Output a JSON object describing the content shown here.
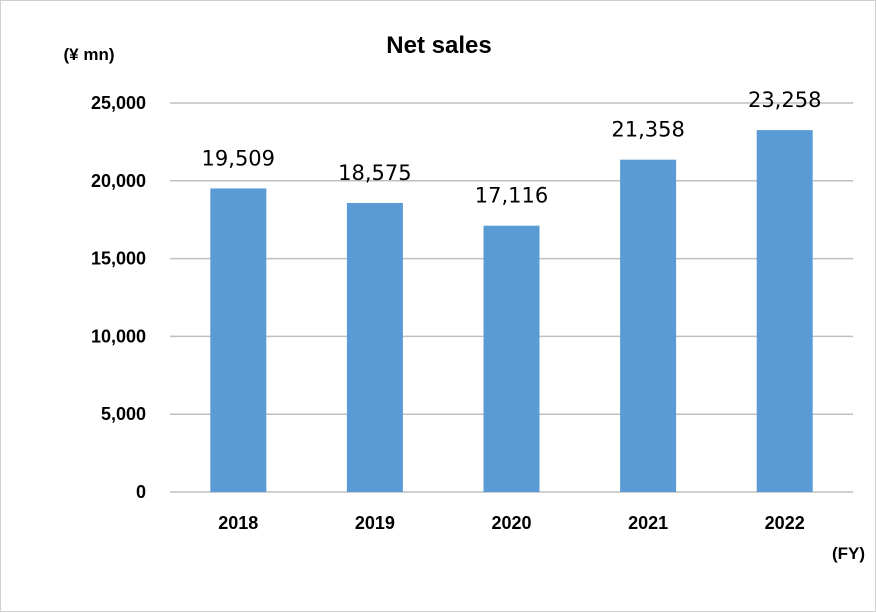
{
  "chart_data": {
    "type": "bar",
    "title": "Net sales",
    "y_unit_label": "(¥ mn)",
    "x_unit_label": "(FY)",
    "categories": [
      "2018",
      "2019",
      "2020",
      "2021",
      "2022"
    ],
    "values": [
      19509,
      18575,
      17116,
      21358,
      23258
    ],
    "value_labels": [
      "19,509",
      "18,575",
      "17,116",
      "21,358",
      "23,258"
    ],
    "ylim": [
      0,
      25000
    ],
    "yticks": [
      0,
      5000,
      10000,
      15000,
      20000,
      25000
    ],
    "ytick_labels": [
      "0",
      "5,000",
      "10,000",
      "15,000",
      "20,000",
      "25,000"
    ],
    "grid": true,
    "legend": "none",
    "bar_color": "#5b9bd5",
    "gridline_color": "#bfbfbf"
  }
}
